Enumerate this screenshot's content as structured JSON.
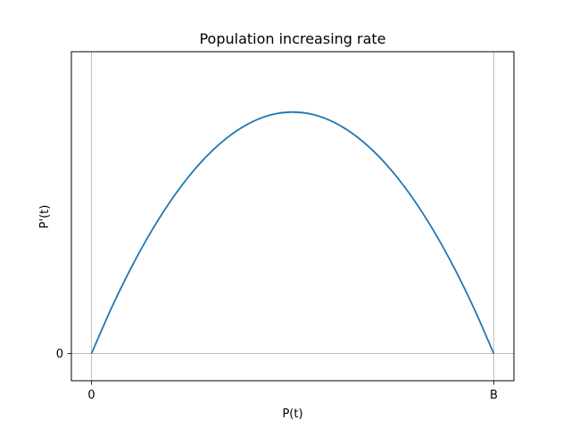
{
  "chart_data": {
    "type": "line",
    "title": "Population increasing rate",
    "xlabel": "P(t)",
    "ylabel": "P'(t)",
    "x_ticks": [
      {
        "value": 0,
        "label": "0"
      },
      {
        "value": 1,
        "label": "B"
      }
    ],
    "y_ticks": [
      {
        "value": 0,
        "label": "0"
      }
    ],
    "xlim": [
      -0.05,
      1.05
    ],
    "ylim": [
      -0.0281,
      0.3125
    ],
    "grid": "ticks-only",
    "series": [
      {
        "color": "#1f77b4",
        "x": [
          0,
          0.05,
          0.1,
          0.15,
          0.2,
          0.25,
          0.3,
          0.35,
          0.4,
          0.45,
          0.5,
          0.55,
          0.6,
          0.65,
          0.7,
          0.75,
          0.8,
          0.85,
          0.9,
          0.95,
          1
        ],
        "y": [
          0,
          0.0475,
          0.09,
          0.1275,
          0.16,
          0.1875,
          0.21,
          0.2275,
          0.24,
          0.2475,
          0.25,
          0.2475,
          0.24,
          0.2275,
          0.21,
          0.1875,
          0.16,
          0.1275,
          0.09,
          0.0475,
          0
        ]
      }
    ]
  }
}
